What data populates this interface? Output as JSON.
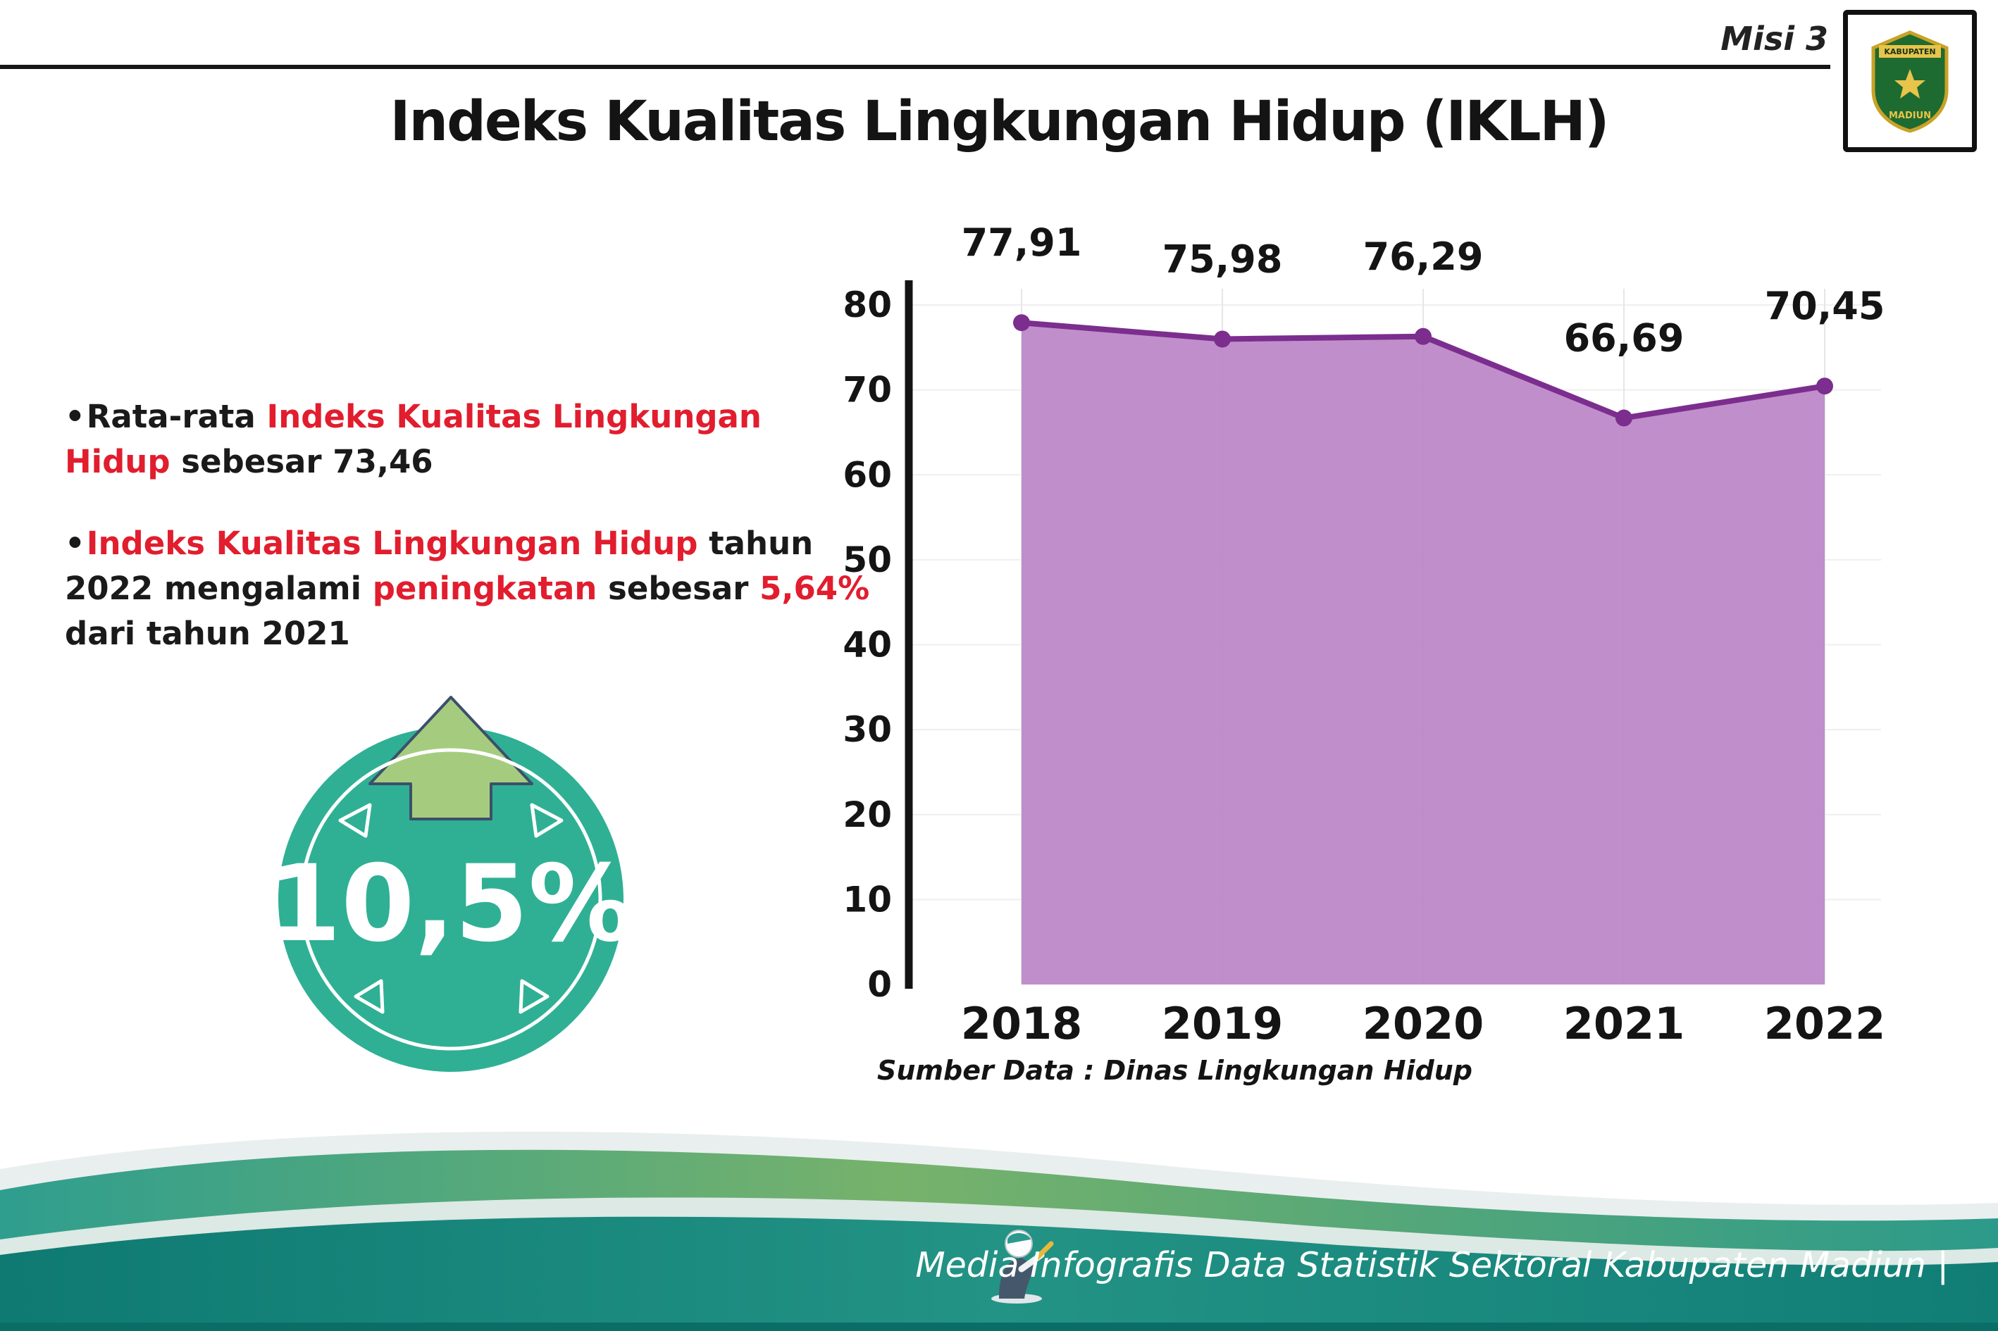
{
  "header": {
    "misi_label": "Misi 3",
    "title": "Indeks Kualitas Lingkungan Hidup (IKLH)",
    "logo": {
      "icon": "kabupaten-madiun-crest-icon",
      "text_top": "KABUPATEN",
      "text_bottom": "MADIUN"
    }
  },
  "bullets": {
    "marker": "•",
    "b1": {
      "s1": "Rata-rata ",
      "s2": "Indeks Kualitas Lingkungan Hidup",
      "s3": " sebesar 73,46"
    },
    "b2": {
      "s1": "Indeks Kualitas Lingkungan Hidup",
      "s2": " tahun 2022 mengalami ",
      "s3": "peningkatan",
      "s4": " sebesar ",
      "s5": "5,64%",
      "s6": " dari tahun 2021"
    }
  },
  "highlight": {
    "value": "10,5%",
    "icon": "up-arrow-icon",
    "circle_color": "#2fb094",
    "arrow_color": "#a5cc7e"
  },
  "chart_data": {
    "type": "area",
    "title": "Indeks Kualitas Lingkungan Hidup (IKLH)",
    "categories": [
      "2018",
      "2019",
      "2020",
      "2021",
      "2022"
    ],
    "values": [
      77.91,
      75.98,
      76.29,
      66.69,
      70.45
    ],
    "value_labels": [
      "77,91",
      "75,98",
      "76,29",
      "66,69",
      "70,45"
    ],
    "ylim": [
      0,
      80
    ],
    "yticks": [
      0,
      10,
      20,
      30,
      40,
      50,
      60,
      70,
      80
    ],
    "grid": true,
    "legend": "none",
    "fill_color": "#bb86c7",
    "line_color": "#7b2e8e",
    "source": "Sumber Data : Dinas Lingkungan Hidup"
  },
  "footer": {
    "credit": "Media Infografis Data Statistik Sektoral Kabupaten Madiun |",
    "mascot_icon": "writer-mascot-icon"
  },
  "colors": {
    "accent_red": "#e11d2e",
    "badge_teal": "#2fb094",
    "arrow_green": "#a5cc7e",
    "area_fill": "#bb86c7",
    "area_line": "#7b2e8e",
    "footer_green": "#77b26b",
    "footer_teal": "#1f8f82"
  }
}
